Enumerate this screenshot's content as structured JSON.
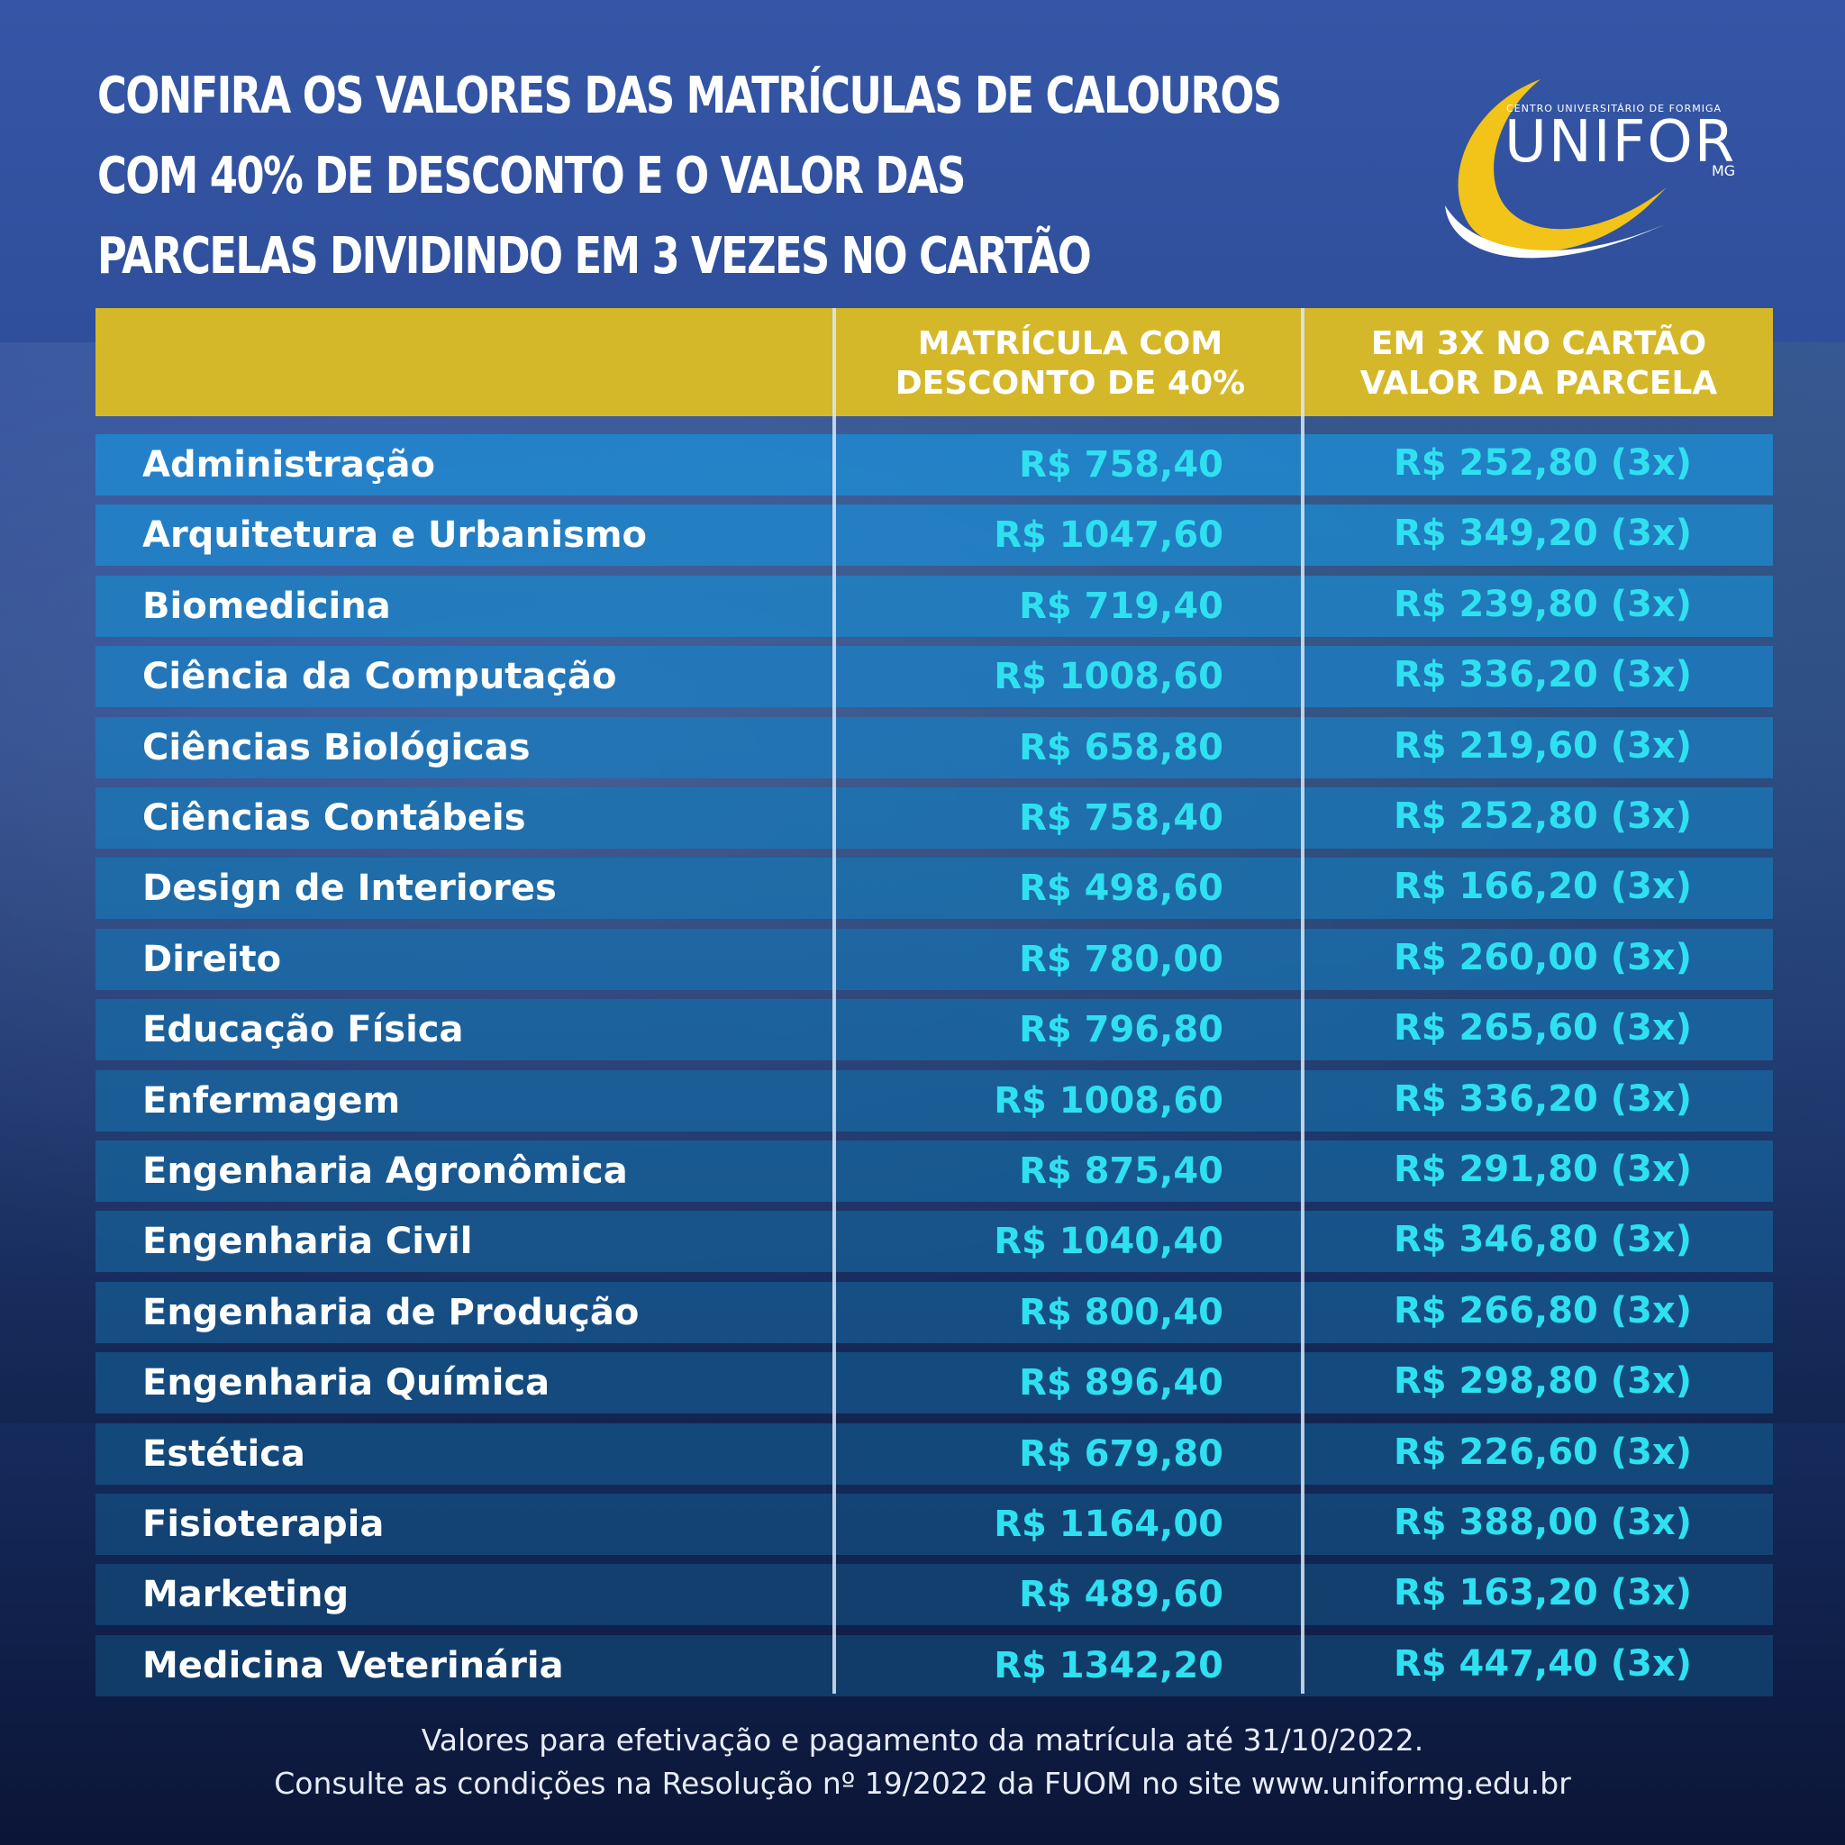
{
  "headline": {
    "line1": "CONFIRA OS VALORES DAS MATRÍCULAS DE CALOUROS",
    "line2": "COM 40% DE DESCONTO E O VALOR DAS",
    "line3": "PARCELAS DIVIDINDO EM 3 VEZES NO CARTÃO"
  },
  "logo": {
    "subtitle": "CENTRO UNIVERSITÁRIO DE FORMIGA",
    "name": "UNIFOR",
    "state": "MG"
  },
  "table": {
    "headers": [
      "",
      "MATRÍCULA COM DESCONTO DE 40%",
      "EM 3X NO CARTÃO VALOR DA PARCELA"
    ],
    "header_lines": {
      "col1_line1": "MATRÍCULA COM",
      "col1_line2": "DESCONTO DE 40%",
      "col2_line1": "EM 3X NO CARTÃO",
      "col2_line2": "VALOR DA PARCELA"
    },
    "rows": [
      [
        "Administração",
        "R$ 758,40",
        "R$ 252,80 (3x)"
      ],
      [
        "Arquitetura e Urbanismo",
        "R$ 1047,60",
        "R$ 349,20 (3x)"
      ],
      [
        "Biomedicina",
        "R$ 719,40",
        "R$ 239,80 (3x)"
      ],
      [
        "Ciência da Computação",
        "R$ 1008,60",
        "R$ 336,20 (3x)"
      ],
      [
        "Ciências Biológicas",
        "R$ 658,80",
        "R$ 219,60 (3x)"
      ],
      [
        "Ciências Contábeis",
        "R$ 758,40",
        "R$ 252,80 (3x)"
      ],
      [
        "Design de Interiores",
        "R$ 498,60",
        "R$ 166,20 (3x)"
      ],
      [
        "Direito",
        "R$ 780,00",
        "R$ 260,00 (3x)"
      ],
      [
        "Educação Física",
        "R$ 796,80",
        "R$ 265,60 (3x)"
      ],
      [
        "Enfermagem",
        "R$ 1008,60",
        "R$ 336,20 (3x)"
      ],
      [
        "Engenharia Agronômica",
        "R$ 875,40",
        "R$ 291,80 (3x)"
      ],
      [
        "Engenharia Civil",
        "R$ 1040,40",
        "R$ 346,80 (3x)"
      ],
      [
        "Engenharia de Produção",
        "R$ 800,40",
        "R$ 266,80 (3x)"
      ],
      [
        "Engenharia Química",
        "R$ 896,40",
        "R$ 298,80 (3x)"
      ],
      [
        "Estética",
        "R$ 679,80",
        "R$ 226,60 (3x)"
      ],
      [
        "Fisioterapia",
        "R$ 1164,00",
        "R$ 388,00 (3x)"
      ],
      [
        "Marketing",
        "R$ 489,60",
        "R$ 163,20 (3x)"
      ],
      [
        "Medicina Veterinária",
        "R$ 1342,20",
        "R$ 447,40 (3x)"
      ]
    ]
  },
  "footer": {
    "line1": "Valores para efetivação e pagamento da matrícula até 31/10/2022.",
    "line2": "Consulte as condições na Resolução nº 19/2022 da FUOM no site www.uniformg.edu.br"
  },
  "colors": {
    "header_gold": "#d4b82a",
    "value_cyan": "#2fe0f0",
    "logo_yellow": "#f2c318"
  }
}
